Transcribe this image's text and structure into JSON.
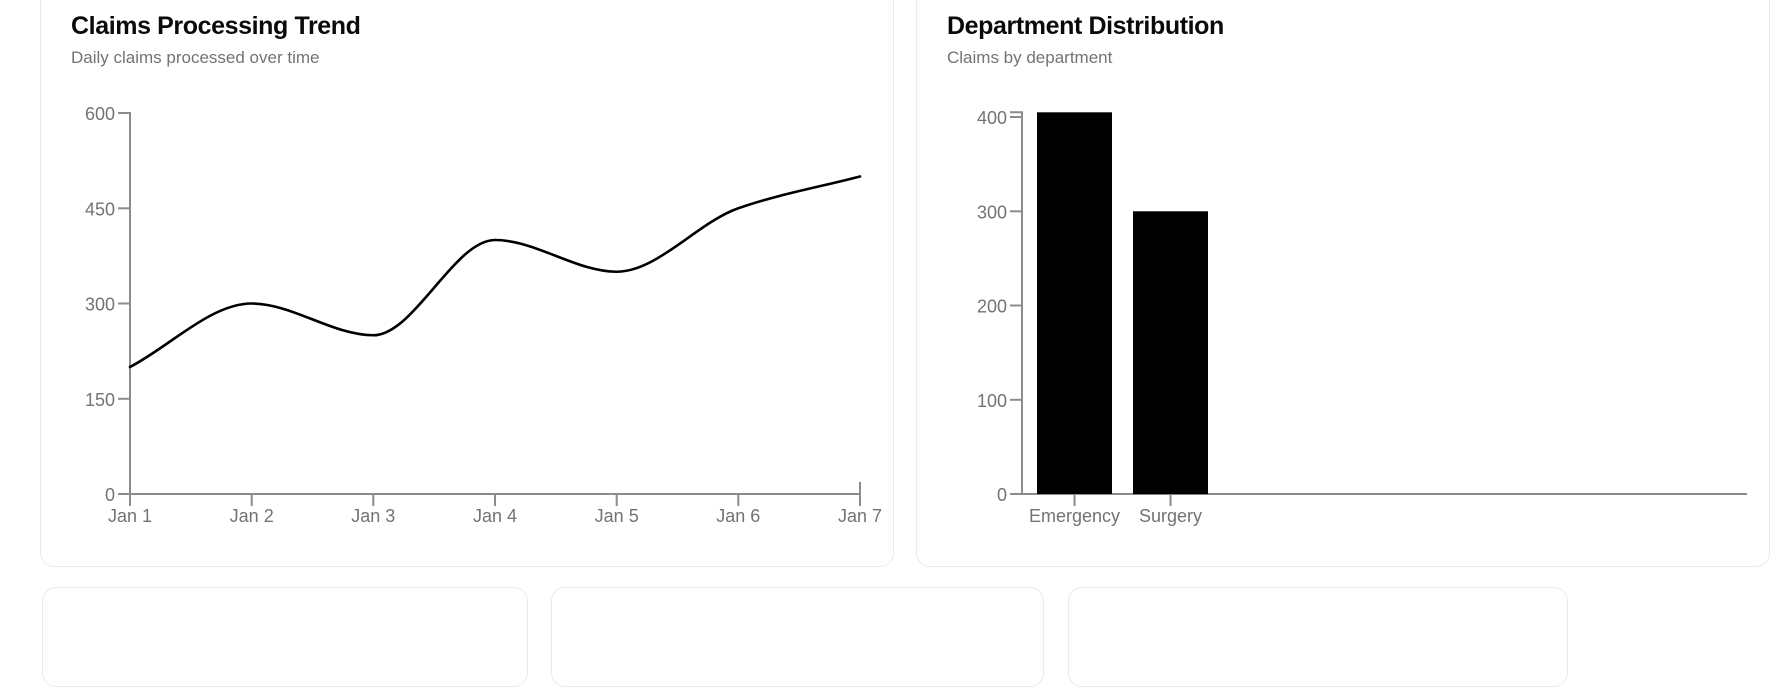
{
  "chart_data": [
    {
      "id": "claims-processing-trend",
      "type": "line",
      "title": "Claims Processing Trend",
      "subtitle": "Daily claims processed over time",
      "x": [
        "Jan 1",
        "Jan 2",
        "Jan 3",
        "Jan 4",
        "Jan 5",
        "Jan 6",
        "Jan 7"
      ],
      "values": [
        200,
        300,
        250,
        400,
        350,
        450,
        500
      ],
      "xlabel": "",
      "ylabel": "",
      "ylim": [
        0,
        600
      ],
      "yticks": [
        0,
        150,
        300,
        450,
        600
      ],
      "grid": false,
      "legend": "none",
      "curve": "monotone",
      "line_color": "#000000",
      "axis_color": "#8c8c8c",
      "tick_label_color": "#737373"
    },
    {
      "id": "department-distribution",
      "type": "bar",
      "title": "Department Distribution",
      "subtitle": "Claims by department",
      "categories": [
        "Emergency",
        "Surgery"
      ],
      "values": [
        405,
        300
      ],
      "xlabel": "",
      "ylabel": "",
      "ylim": [
        0,
        405
      ],
      "yticks": [
        0,
        100,
        200,
        300,
        400
      ],
      "grid": false,
      "legend": "none",
      "bar_color": "#000000",
      "axis_color": "#8c8c8c",
      "tick_label_color": "#737373"
    }
  ]
}
